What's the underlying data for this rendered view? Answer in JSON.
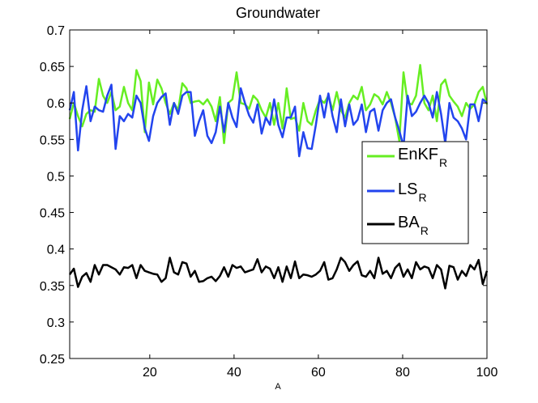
{
  "chart_data": {
    "type": "line",
    "title": "Groundwater",
    "xlabel": "A",
    "ylabel": "",
    "xlim": [
      1,
      100
    ],
    "ylim": [
      0.25,
      0.7
    ],
    "xticks": [
      20,
      40,
      60,
      80,
      100
    ],
    "yticks": [
      0.25,
      0.3,
      0.35,
      0.4,
      0.45,
      0.5,
      0.55,
      0.6,
      0.65,
      0.7
    ],
    "ytick_labels": [
      "0.25",
      "0.3",
      "0.35",
      "0.4",
      "0.45",
      "0.5",
      "0.55",
      "0.6",
      "0.65",
      "0.7"
    ],
    "xtick_labels": [
      "20",
      "40",
      "60",
      "80",
      "100"
    ],
    "legend_position": "right",
    "series": [
      {
        "name": "EnKF",
        "subscript": "R",
        "color": "#66ee22",
        "values": [
          0.578,
          0.6,
          0.582,
          0.568,
          0.585,
          0.59,
          0.588,
          0.633,
          0.61,
          0.6,
          0.615,
          0.59,
          0.595,
          0.622,
          0.6,
          0.59,
          0.645,
          0.63,
          0.56,
          0.628,
          0.598,
          0.632,
          0.62,
          0.6,
          0.585,
          0.6,
          0.59,
          0.627,
          0.62,
          0.6,
          0.602,
          0.603,
          0.598,
          0.605,
          0.595,
          0.575,
          0.608,
          0.545,
          0.6,
          0.605,
          0.642,
          0.6,
          0.598,
          0.592,
          0.61,
          0.604,
          0.59,
          0.58,
          0.6,
          0.57,
          0.6,
          0.565,
          0.62,
          0.578,
          0.58,
          0.562,
          0.6,
          0.575,
          0.57,
          0.59,
          0.605,
          0.6,
          0.61,
          0.59,
          0.615,
          0.59,
          0.58,
          0.6,
          0.61,
          0.605,
          0.622,
          0.59,
          0.598,
          0.612,
          0.608,
          0.598,
          0.615,
          0.6,
          0.58,
          0.548,
          0.642,
          0.6,
          0.598,
          0.61,
          0.652,
          0.6,
          0.59,
          0.61,
          0.575,
          0.625,
          0.632,
          0.61,
          0.602,
          0.595,
          0.582,
          0.6,
          0.592,
          0.598,
          0.615,
          0.622,
          0.598
        ],
        "line_width": 2.5
      },
      {
        "name": "LS",
        "subscript": "R",
        "color": "#2244ee",
        "values": [
          0.59,
          0.615,
          0.535,
          0.59,
          0.623,
          0.575,
          0.595,
          0.59,
          0.588,
          0.61,
          0.625,
          0.537,
          0.582,
          0.575,
          0.585,
          0.58,
          0.61,
          0.6,
          0.565,
          0.548,
          0.582,
          0.6,
          0.608,
          0.613,
          0.57,
          0.6,
          0.585,
          0.61,
          0.615,
          0.615,
          0.555,
          0.575,
          0.59,
          0.555,
          0.545,
          0.56,
          0.595,
          0.56,
          0.6,
          0.58,
          0.567,
          0.62,
          0.6,
          0.583,
          0.573,
          0.598,
          0.558,
          0.58,
          0.57,
          0.605,
          0.57,
          0.553,
          0.58,
          0.58,
          0.595,
          0.527,
          0.56,
          0.538,
          0.537,
          0.57,
          0.61,
          0.58,
          0.613,
          0.582,
          0.56,
          0.605,
          0.568,
          0.598,
          0.57,
          0.577,
          0.598,
          0.56,
          0.588,
          0.592,
          0.562,
          0.59,
          0.6,
          0.605,
          0.58,
          0.562,
          0.54,
          0.61,
          0.582,
          0.588,
          0.6,
          0.61,
          0.6,
          0.58,
          0.615,
          0.585,
          0.545,
          0.6,
          0.58,
          0.575,
          0.565,
          0.55,
          0.598,
          0.598,
          0.575,
          0.605,
          0.6
        ],
        "line_width": 2.5
      },
      {
        "name": "BA",
        "subscript": "R",
        "color": "#000000",
        "values": [
          0.365,
          0.373,
          0.348,
          0.362,
          0.367,
          0.355,
          0.378,
          0.365,
          0.378,
          0.378,
          0.375,
          0.372,
          0.365,
          0.375,
          0.374,
          0.378,
          0.36,
          0.378,
          0.37,
          0.368,
          0.366,
          0.365,
          0.355,
          0.36,
          0.388,
          0.368,
          0.365,
          0.382,
          0.38,
          0.362,
          0.37,
          0.355,
          0.356,
          0.36,
          0.362,
          0.356,
          0.363,
          0.375,
          0.362,
          0.378,
          0.374,
          0.376,
          0.368,
          0.37,
          0.372,
          0.386,
          0.368,
          0.376,
          0.373,
          0.36,
          0.375,
          0.355,
          0.376,
          0.36,
          0.383,
          0.36,
          0.365,
          0.364,
          0.362,
          0.365,
          0.37,
          0.382,
          0.358,
          0.36,
          0.372,
          0.388,
          0.382,
          0.37,
          0.378,
          0.383,
          0.364,
          0.362,
          0.37,
          0.36,
          0.388,
          0.366,
          0.37,
          0.36,
          0.374,
          0.38,
          0.362,
          0.372,
          0.36,
          0.382,
          0.372,
          0.376,
          0.374,
          0.36,
          0.378,
          0.372,
          0.346,
          0.377,
          0.375,
          0.358,
          0.37,
          0.363,
          0.378,
          0.372,
          0.385,
          0.352,
          0.37
        ],
        "line_width": 2.5
      }
    ]
  }
}
